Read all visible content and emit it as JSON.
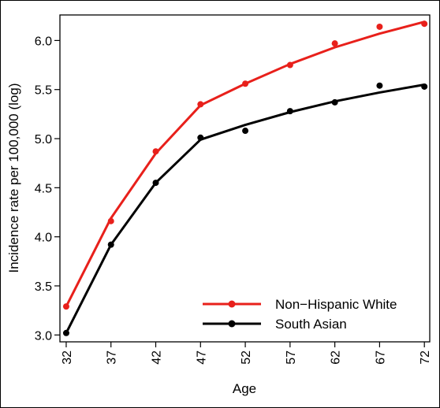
{
  "chart_data": {
    "type": "line",
    "title": "",
    "xlabel": "Age",
    "ylabel": "Incidence rate per 100,000 (log)",
    "x_ticks": [
      "32",
      "37",
      "42",
      "47",
      "52",
      "57",
      "62",
      "67",
      "72"
    ],
    "y_ticks": [
      "3.0",
      "3.5",
      "4.0",
      "4.5",
      "5.0",
      "5.5",
      "6.0"
    ],
    "xlim": [
      31.3,
      72.6
    ],
    "ylim": [
      2.93,
      6.26
    ],
    "grid": false,
    "legend_position": "bottom-right",
    "series": [
      {
        "name": "Non−Hispanic White",
        "color": "#e8201b",
        "points_x": [
          32,
          37,
          42,
          47,
          52,
          57,
          62,
          67,
          72
        ],
        "points_y": [
          3.29,
          4.16,
          4.87,
          5.35,
          5.56,
          5.75,
          5.97,
          6.14,
          6.17
        ],
        "fit_x": [
          32,
          37,
          42,
          47,
          52,
          57,
          62,
          67,
          72
        ],
        "fit_y": [
          3.29,
          4.19,
          4.85,
          5.34,
          5.56,
          5.76,
          5.93,
          6.07,
          6.19
        ]
      },
      {
        "name": "South Asian",
        "color": "#000000",
        "points_x": [
          32,
          37,
          42,
          47,
          52,
          57,
          62,
          67,
          72
        ],
        "points_y": [
          3.02,
          3.92,
          4.55,
          5.01,
          5.08,
          5.28,
          5.37,
          5.54,
          5.53
        ],
        "fit_x": [
          32,
          37,
          42,
          47,
          52,
          57,
          62,
          67,
          72
        ],
        "fit_y": [
          3.02,
          3.92,
          4.55,
          4.99,
          5.14,
          5.27,
          5.38,
          5.47,
          5.55
        ]
      }
    ]
  }
}
